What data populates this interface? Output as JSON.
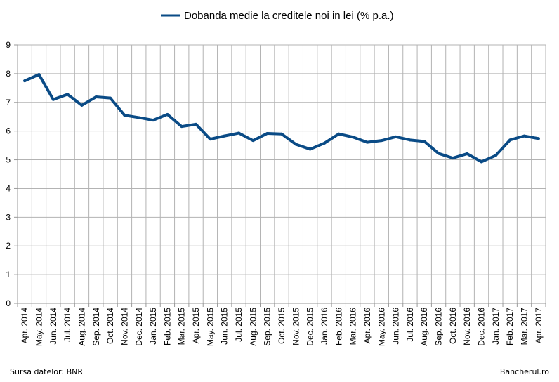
{
  "footer": {
    "source": "Sursa datelor: BNR",
    "credit": "Bancherul.ro"
  },
  "colors": {
    "series": "#0a4b86",
    "grid": "#b3b3b3",
    "axis": "#9a9a9a"
  },
  "chart_data": {
    "type": "line",
    "title": "",
    "xlabel": "",
    "ylabel": "",
    "ylim": [
      0,
      9
    ],
    "yticks": [
      "0",
      "1",
      "2",
      "3",
      "4",
      "5",
      "6",
      "7",
      "8",
      "9"
    ],
    "grid": true,
    "legend": "top-center",
    "categories": [
      "Apr. 2014",
      "May. 2014",
      "Jun. 2014",
      "Jul. 2014",
      "Aug. 2014",
      "Sep. 2014",
      "Oct. 2014",
      "Nov. 2014",
      "Dec. 2014",
      "Jan. 2015",
      "Feb. 2015",
      "Mar. 2015",
      "Apr. 2015",
      "May. 2015",
      "Jun. 2015",
      "Jul. 2015",
      "Aug. 2015",
      "Sep. 2015",
      "Oct. 2015",
      "Nov. 2015",
      "Dec. 2015",
      "Jan. 2016",
      "Feb. 2016",
      "Mar. 2016",
      "Apr. 2016",
      "May. 2016",
      "Jun. 2016",
      "Jul. 2016",
      "Aug. 2016",
      "Sep. 2016",
      "Oct. 2016",
      "Nov. 2016",
      "Dec. 2016",
      "Jan. 2017",
      "Feb. 2017",
      "Mar. 2017",
      "Apr. 2017"
    ],
    "series": [
      {
        "name": "Dobanda medie la creditele noi in lei (% p.a.)",
        "values": [
          7.75,
          7.97,
          7.1,
          7.28,
          6.9,
          7.19,
          7.15,
          6.55,
          6.47,
          6.38,
          6.58,
          6.16,
          6.24,
          5.72,
          5.83,
          5.93,
          5.67,
          5.92,
          5.9,
          5.54,
          5.37,
          5.58,
          5.9,
          5.79,
          5.61,
          5.67,
          5.8,
          5.69,
          5.64,
          5.22,
          5.06,
          5.21,
          4.93,
          5.15,
          5.69,
          5.83,
          5.74
        ]
      }
    ]
  }
}
